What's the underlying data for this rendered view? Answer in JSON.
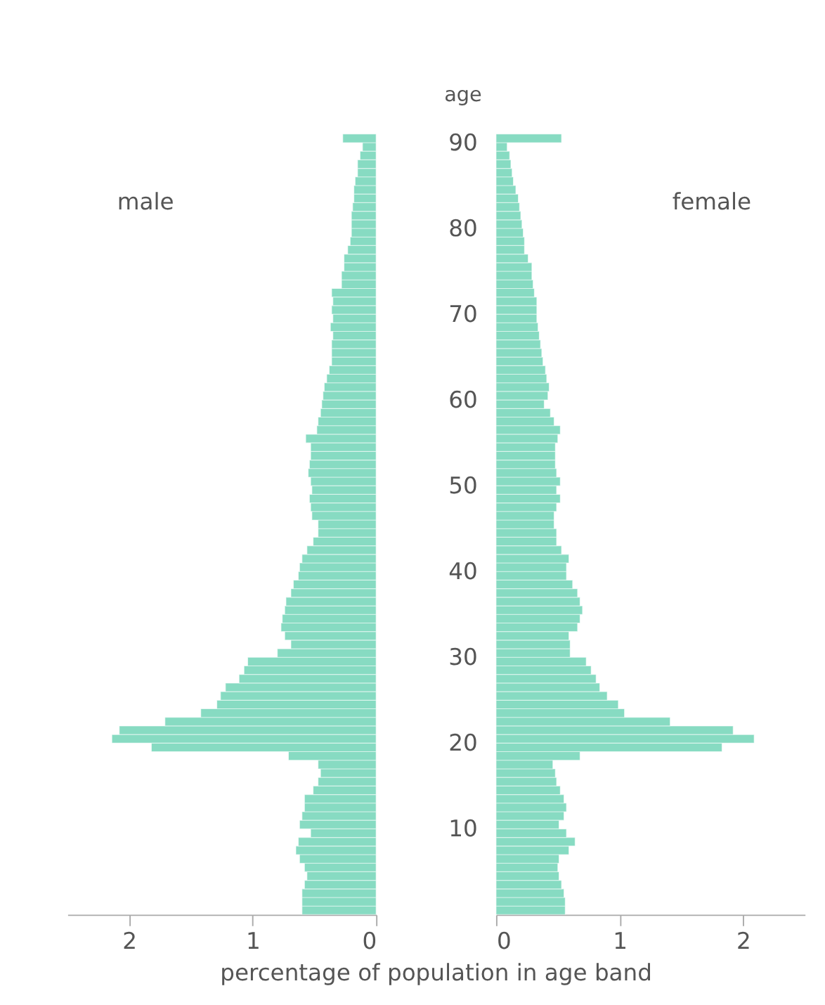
{
  "chart_data": [
    {
      "type": "bar",
      "orientation": "horizontal",
      "annotations": [
        "male"
      ],
      "xlabel": "percentage of population in age band",
      "xlim": [
        2.5,
        0
      ],
      "xticks": [
        2,
        1,
        0
      ],
      "ylim": [
        0,
        91
      ],
      "yticks": [
        10,
        20,
        30,
        40,
        50,
        60,
        70,
        80,
        90
      ],
      "tick_labels": "x",
      "grid": false,
      "x": [
        0,
        1,
        2,
        3,
        4,
        5,
        6,
        7,
        8,
        9,
        10,
        11,
        12,
        13,
        14,
        15,
        16,
        17,
        18,
        19,
        20,
        21,
        22,
        23,
        24,
        25,
        26,
        27,
        28,
        29,
        30,
        31,
        32,
        33,
        34,
        35,
        36,
        37,
        38,
        39,
        40,
        41,
        42,
        43,
        44,
        45,
        46,
        47,
        48,
        49,
        50,
        51,
        52,
        53,
        54,
        55,
        56,
        57,
        58,
        59,
        60,
        61,
        62,
        63,
        64,
        65,
        66,
        67,
        68,
        69,
        70,
        71,
        72,
        73,
        74,
        75,
        76,
        77,
        78,
        79,
        80,
        81,
        82,
        83,
        84,
        85,
        86,
        87,
        88,
        89,
        90
      ],
      "series": [
        {
          "color": "#12b886",
          "values": [
            0.6,
            0.6,
            0.6,
            0.58,
            0.56,
            0.58,
            0.62,
            0.65,
            0.63,
            0.53,
            0.62,
            0.6,
            0.58,
            0.58,
            0.51,
            0.47,
            0.45,
            0.47,
            0.71,
            1.82,
            2.14,
            2.08,
            1.71,
            1.42,
            1.29,
            1.26,
            1.22,
            1.11,
            1.07,
            1.04,
            0.8,
            0.69,
            0.74,
            0.77,
            0.76,
            0.74,
            0.73,
            0.69,
            0.67,
            0.63,
            0.62,
            0.6,
            0.56,
            0.51,
            0.47,
            0.47,
            0.52,
            0.53,
            0.54,
            0.52,
            0.53,
            0.55,
            0.54,
            0.53,
            0.53,
            0.57,
            0.48,
            0.47,
            0.45,
            0.44,
            0.43,
            0.42,
            0.4,
            0.38,
            0.36,
            0.36,
            0.36,
            0.35,
            0.37,
            0.35,
            0.36,
            0.35,
            0.36,
            0.28,
            0.28,
            0.26,
            0.26,
            0.23,
            0.21,
            0.2,
            0.2,
            0.2,
            0.19,
            0.18,
            0.18,
            0.17,
            0.15,
            0.15,
            0.13,
            0.11,
            0.27
          ]
        }
      ]
    },
    {
      "type": "bar",
      "orientation": "horizontal",
      "annotations": [
        "female"
      ],
      "ylabel": "age",
      "xlim": [
        0,
        2.5
      ],
      "xticks": [
        0,
        1,
        2
      ],
      "ylim": [
        0,
        91
      ],
      "yticks": [
        10,
        20,
        30,
        40,
        50,
        60,
        70,
        80,
        90
      ],
      "grid": false,
      "x": [
        0,
        1,
        2,
        3,
        4,
        5,
        6,
        7,
        8,
        9,
        10,
        11,
        12,
        13,
        14,
        15,
        16,
        17,
        18,
        19,
        20,
        21,
        22,
        23,
        24,
        25,
        26,
        27,
        28,
        29,
        30,
        31,
        32,
        33,
        34,
        35,
        36,
        37,
        38,
        39,
        40,
        41,
        42,
        43,
        44,
        45,
        46,
        47,
        48,
        49,
        50,
        51,
        52,
        53,
        54,
        55,
        56,
        57,
        58,
        59,
        60,
        61,
        62,
        63,
        64,
        65,
        66,
        67,
        68,
        69,
        70,
        71,
        72,
        73,
        74,
        75,
        76,
        77,
        78,
        79,
        80,
        81,
        82,
        83,
        84,
        85,
        86,
        87,
        88,
        89,
        90
      ],
      "series": [
        {
          "color": "#12b886",
          "values": [
            0.56,
            0.56,
            0.55,
            0.53,
            0.51,
            0.5,
            0.51,
            0.59,
            0.64,
            0.57,
            0.51,
            0.55,
            0.57,
            0.55,
            0.52,
            0.49,
            0.48,
            0.46,
            0.68,
            1.83,
            2.09,
            1.92,
            1.41,
            1.04,
            0.99,
            0.9,
            0.84,
            0.81,
            0.77,
            0.73,
            0.6,
            0.6,
            0.59,
            0.66,
            0.68,
            0.7,
            0.68,
            0.66,
            0.62,
            0.57,
            0.57,
            0.59,
            0.53,
            0.49,
            0.49,
            0.47,
            0.47,
            0.49,
            0.52,
            0.49,
            0.52,
            0.49,
            0.48,
            0.48,
            0.48,
            0.5,
            0.52,
            0.47,
            0.44,
            0.39,
            0.42,
            0.43,
            0.41,
            0.4,
            0.38,
            0.37,
            0.36,
            0.35,
            0.34,
            0.33,
            0.33,
            0.33,
            0.31,
            0.3,
            0.29,
            0.29,
            0.26,
            0.23,
            0.23,
            0.22,
            0.21,
            0.2,
            0.19,
            0.18,
            0.16,
            0.14,
            0.13,
            0.12,
            0.11,
            0.09,
            0.53
          ]
        }
      ]
    }
  ]
}
